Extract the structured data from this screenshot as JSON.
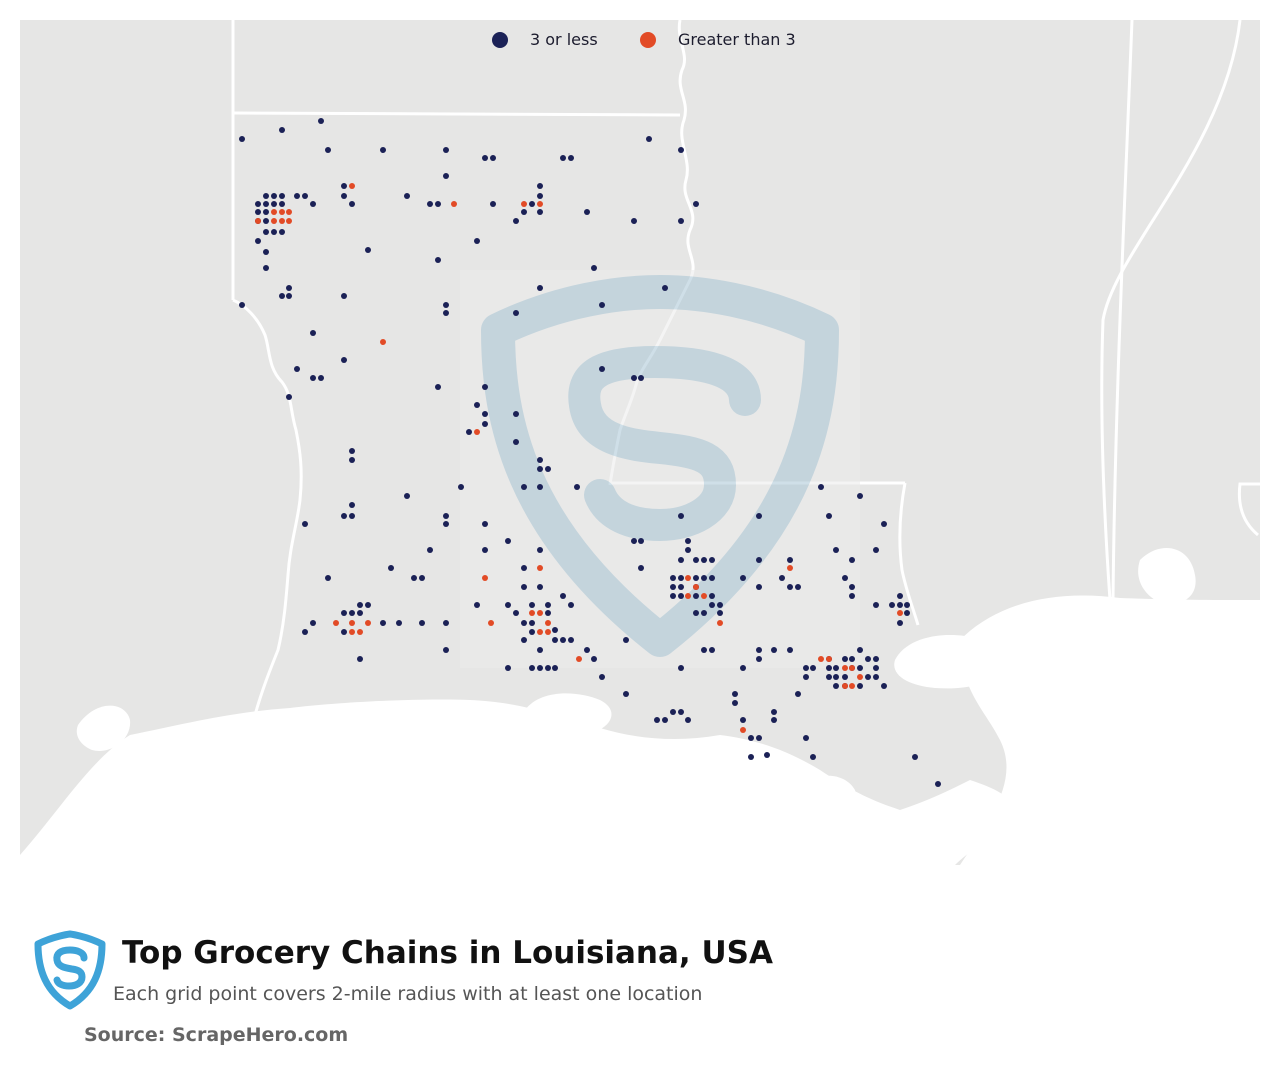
{
  "legend": {
    "items": [
      {
        "label": "3 or less",
        "color": "#1b2156"
      },
      {
        "label": "Greater than 3",
        "color": "#e24b26"
      }
    ]
  },
  "map": {
    "land_color": "#e6e6e5",
    "water_color": "#ffffff",
    "border_color": "#ffffff",
    "watermark_color": "#a9c6d6",
    "dot_color_low": "#1b2156",
    "dot_color_high": "#e24b26"
  },
  "footer": {
    "title": "Top Grocery Chains in Louisiana, USA",
    "subtitle": "Each grid point covers 2-mile radius with at least one location",
    "source": "Source: ScrapeHero.com",
    "logo_icon": "scrapehero-shield-logo",
    "logo_color": "#3ea3d8"
  }
}
